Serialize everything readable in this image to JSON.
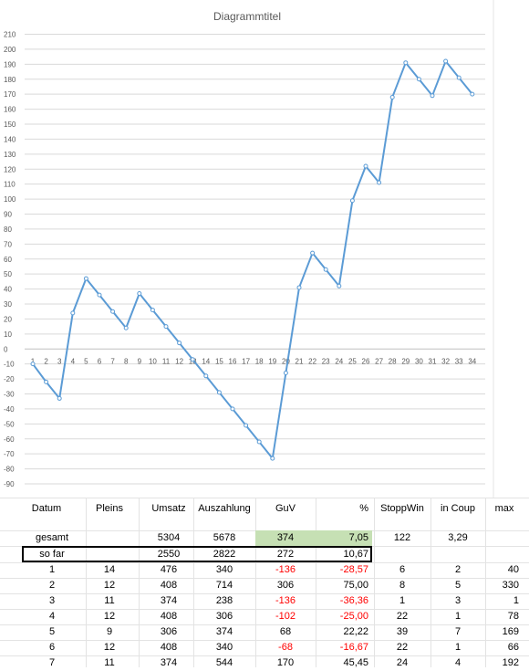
{
  "chart_data": {
    "type": "line",
    "title": "Diagrammtitel",
    "categories": [
      "1",
      "2",
      "3",
      "4",
      "5",
      "6",
      "7",
      "8",
      "9",
      "10",
      "11",
      "12",
      "13",
      "14",
      "15",
      "16",
      "17",
      "18",
      "19",
      "20",
      "21",
      "22",
      "23",
      "24",
      "25",
      "26",
      "27",
      "28",
      "29",
      "30",
      "31",
      "32",
      "33",
      "34"
    ],
    "series": [
      {
        "values": [
          -10,
          -22,
          -33,
          24,
          47,
          36,
          25,
          14,
          37,
          26,
          15,
          4,
          -7,
          -18,
          -29,
          -40,
          -51,
          -62,
          -73,
          -16,
          41,
          64,
          53,
          42,
          99,
          122,
          111,
          168,
          191,
          180,
          169,
          192,
          181,
          170
        ]
      }
    ],
    "ylim": [
      -90,
      210
    ],
    "yticks": [
      210,
      200,
      190,
      180,
      170,
      160,
      150,
      140,
      130,
      120,
      110,
      100,
      90,
      80,
      70,
      60,
      50,
      40,
      30,
      20,
      10,
      0,
      -10,
      -20,
      -30,
      -40,
      -50,
      -60,
      -70,
      -80,
      -90
    ],
    "grid": true,
    "color": "#5b9bd5"
  },
  "table": {
    "headers": [
      "Datum",
      "Pleins",
      "Umsatz",
      "Auszahlung",
      "GuV",
      "%",
      "StoppWin",
      "in Coup",
      "max"
    ],
    "gesamt": {
      "label": "gesamt",
      "umsatz": "5304",
      "auszahlung": "5678",
      "guv": "374",
      "pct": "7,05",
      "stoppwin": "122",
      "incoup": "3,29"
    },
    "sofar": {
      "label": "so far",
      "umsatz": "2550",
      "auszahlung": "2822",
      "guv": "272",
      "pct": "10,67"
    },
    "rows": [
      {
        "datum": "1",
        "pleins": "14",
        "umsatz": "476",
        "auszahlung": "340",
        "guv": "-136",
        "pct": "-28,57",
        "stoppwin": "6",
        "incoup": "2",
        "max": "40"
      },
      {
        "datum": "2",
        "pleins": "12",
        "umsatz": "408",
        "auszahlung": "714",
        "guv": "306",
        "pct": "75,00",
        "stoppwin": "8",
        "incoup": "5",
        "max": "330"
      },
      {
        "datum": "3",
        "pleins": "11",
        "umsatz": "374",
        "auszahlung": "238",
        "guv": "-136",
        "pct": "-36,36",
        "stoppwin": "1",
        "incoup": "3",
        "max": "1"
      },
      {
        "datum": "4",
        "pleins": "12",
        "umsatz": "408",
        "auszahlung": "306",
        "guv": "-102",
        "pct": "-25,00",
        "stoppwin": "22",
        "incoup": "1",
        "max": "78"
      },
      {
        "datum": "5",
        "pleins": "9",
        "umsatz": "306",
        "auszahlung": "374",
        "guv": "68",
        "pct": "22,22",
        "stoppwin": "39",
        "incoup": "7",
        "max": "169"
      },
      {
        "datum": "6",
        "pleins": "12",
        "umsatz": "408",
        "auszahlung": "340",
        "guv": "-68",
        "pct": "-16,67",
        "stoppwin": "22",
        "incoup": "1",
        "max": "66"
      },
      {
        "datum": "7",
        "pleins": "11",
        "umsatz": "374",
        "auszahlung": "544",
        "guv": "170",
        "pct": "45,45",
        "stoppwin": "24",
        "incoup": "4",
        "max": "192"
      }
    ],
    "colors": {
      "negative": "#ff0000",
      "highlight": "#c6e0b4"
    }
  }
}
